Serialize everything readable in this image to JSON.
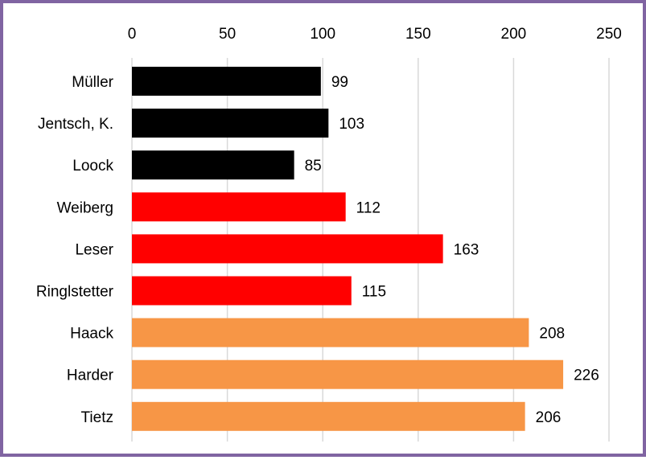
{
  "chart_data": {
    "type": "bar",
    "orientation": "horizontal",
    "categories": [
      "Müller",
      "Jentsch, K.",
      "Loock",
      "Weiberg",
      "Leser",
      "Ringlstetter",
      "Haack",
      "Harder",
      "Tietz"
    ],
    "values": [
      99,
      103,
      85,
      112,
      163,
      115,
      208,
      226,
      206
    ],
    "bar_colors": [
      "#000000",
      "#000000",
      "#000000",
      "#ff0000",
      "#ff0000",
      "#ff0000",
      "#f79646",
      "#f79646",
      "#f79646"
    ],
    "xlim": [
      0,
      250
    ],
    "xticks": [
      0,
      50,
      100,
      150,
      200,
      250
    ],
    "x_axis_position": "top",
    "grid": true,
    "data_labels": true,
    "frame_color": "#8064a2"
  }
}
